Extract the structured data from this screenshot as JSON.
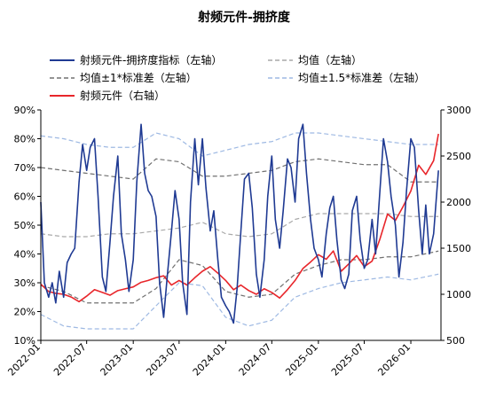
{
  "chart_data": {
    "type": "line",
    "title": "射频元件-拥挤度",
    "legend_placement": "top",
    "grid": false,
    "x_axis": {
      "type": "date",
      "range": [
        "2022-01-01",
        "2026-04-30"
      ],
      "tick_labels": [
        "2022-01",
        "2022-07",
        "2023-01",
        "2023-07",
        "2024-01",
        "2024-07",
        "2025-01",
        "2025-07",
        "2026-01"
      ]
    },
    "y_left": {
      "range": [
        10,
        90
      ],
      "unit": "%",
      "tick_labels": [
        "10%",
        "20%",
        "30%",
        "40%",
        "50%",
        "60%",
        "70%",
        "80%",
        "90%"
      ]
    },
    "y_right": {
      "range": [
        500,
        3000
      ],
      "tick_labels": [
        "500",
        "1000",
        "1500",
        "2000",
        "2500",
        "3000"
      ]
    },
    "series": [
      {
        "name": "射频元件-拥挤度指标（左轴）",
        "axis": "left",
        "color": "#1f3a93",
        "style": "solid",
        "points": [
          [
            "2022-01-01",
            58
          ],
          [
            "2022-01-15",
            30
          ],
          [
            "2022-02-01",
            25
          ],
          [
            "2022-02-15",
            30
          ],
          [
            "2022-03-01",
            23
          ],
          [
            "2022-03-15",
            34
          ],
          [
            "2022-04-01",
            25
          ],
          [
            "2022-04-15",
            37
          ],
          [
            "2022-05-01",
            40
          ],
          [
            "2022-05-15",
            42
          ],
          [
            "2022-06-01",
            65
          ],
          [
            "2022-06-15",
            78
          ],
          [
            "2022-07-01",
            69
          ],
          [
            "2022-07-15",
            77
          ],
          [
            "2022-08-01",
            80
          ],
          [
            "2022-08-15",
            60
          ],
          [
            "2022-09-01",
            32
          ],
          [
            "2022-09-15",
            27
          ],
          [
            "2022-10-01",
            44
          ],
          [
            "2022-10-15",
            60
          ],
          [
            "2022-11-01",
            74
          ],
          [
            "2022-11-15",
            47
          ],
          [
            "2022-12-01",
            38
          ],
          [
            "2022-12-15",
            27
          ],
          [
            "2023-01-01",
            38
          ],
          [
            "2023-01-15",
            65
          ],
          [
            "2023-02-01",
            85
          ],
          [
            "2023-02-15",
            68
          ],
          [
            "2023-03-01",
            62
          ],
          [
            "2023-03-15",
            60
          ],
          [
            "2023-04-01",
            53
          ],
          [
            "2023-04-15",
            30
          ],
          [
            "2023-05-01",
            18
          ],
          [
            "2023-05-15",
            32
          ],
          [
            "2023-06-01",
            48
          ],
          [
            "2023-06-15",
            62
          ],
          [
            "2023-07-01",
            52
          ],
          [
            "2023-07-15",
            30
          ],
          [
            "2023-08-01",
            19
          ],
          [
            "2023-08-15",
            58
          ],
          [
            "2023-09-01",
            80
          ],
          [
            "2023-09-15",
            64
          ],
          [
            "2023-10-01",
            80
          ],
          [
            "2023-10-15",
            63
          ],
          [
            "2023-11-01",
            48
          ],
          [
            "2023-11-15",
            55
          ],
          [
            "2023-12-01",
            38
          ],
          [
            "2023-12-15",
            25
          ],
          [
            "2024-01-01",
            22
          ],
          [
            "2024-01-15",
            20
          ],
          [
            "2024-02-01",
            16
          ],
          [
            "2024-02-15",
            28
          ],
          [
            "2024-03-01",
            48
          ],
          [
            "2024-03-15",
            66
          ],
          [
            "2024-04-01",
            68
          ],
          [
            "2024-04-15",
            56
          ],
          [
            "2024-05-01",
            33
          ],
          [
            "2024-05-15",
            25
          ],
          [
            "2024-06-01",
            38
          ],
          [
            "2024-06-15",
            60
          ],
          [
            "2024-07-01",
            74
          ],
          [
            "2024-07-15",
            52
          ],
          [
            "2024-08-01",
            42
          ],
          [
            "2024-08-15",
            55
          ],
          [
            "2024-09-01",
            73
          ],
          [
            "2024-09-15",
            70
          ],
          [
            "2024-10-01",
            58
          ],
          [
            "2024-10-15",
            80
          ],
          [
            "2024-11-01",
            85
          ],
          [
            "2024-11-15",
            68
          ],
          [
            "2024-12-01",
            52
          ],
          [
            "2024-12-15",
            42
          ],
          [
            "2025-01-01",
            38
          ],
          [
            "2025-01-15",
            32
          ],
          [
            "2025-02-01",
            47
          ],
          [
            "2025-02-15",
            56
          ],
          [
            "2025-03-01",
            60
          ],
          [
            "2025-03-15",
            45
          ],
          [
            "2025-04-01",
            31
          ],
          [
            "2025-04-15",
            28
          ],
          [
            "2025-05-01",
            33
          ],
          [
            "2025-05-15",
            55
          ],
          [
            "2025-06-01",
            60
          ],
          [
            "2025-06-15",
            45
          ],
          [
            "2025-07-01",
            35
          ],
          [
            "2025-07-15",
            38
          ],
          [
            "2025-08-01",
            52
          ],
          [
            "2025-08-15",
            40
          ],
          [
            "2025-09-01",
            62
          ],
          [
            "2025-09-15",
            80
          ],
          [
            "2025-10-01",
            72
          ],
          [
            "2025-10-15",
            60
          ],
          [
            "2025-11-01",
            50
          ],
          [
            "2025-11-15",
            32
          ],
          [
            "2025-12-01",
            44
          ],
          [
            "2025-12-15",
            62
          ],
          [
            "2026-01-01",
            80
          ],
          [
            "2026-01-15",
            77
          ],
          [
            "2026-02-01",
            55
          ],
          [
            "2026-02-15",
            40
          ],
          [
            "2026-03-01",
            57
          ],
          [
            "2026-03-15",
            40
          ],
          [
            "2026-04-01",
            47
          ],
          [
            "2026-04-20",
            69
          ]
        ]
      },
      {
        "name": "均值（左轴）",
        "axis": "left",
        "color": "#a9a9a9",
        "style": "dashed",
        "points": [
          [
            "2022-01-01",
            47
          ],
          [
            "2022-04-01",
            46
          ],
          [
            "2022-07-01",
            46
          ],
          [
            "2022-10-01",
            47
          ],
          [
            "2023-01-01",
            47
          ],
          [
            "2023-04-01",
            48
          ],
          [
            "2023-07-01",
            49
          ],
          [
            "2023-10-01",
            51
          ],
          [
            "2024-01-01",
            47
          ],
          [
            "2024-04-01",
            46
          ],
          [
            "2024-07-01",
            47
          ],
          [
            "2024-10-01",
            52
          ],
          [
            "2025-01-01",
            54
          ],
          [
            "2025-04-01",
            54
          ],
          [
            "2025-07-01",
            54
          ],
          [
            "2025-10-01",
            54
          ],
          [
            "2026-01-01",
            53
          ],
          [
            "2026-04-20",
            53
          ]
        ]
      },
      {
        "name": "均值±1*标准差（左轴）",
        "axis": "left",
        "color": "#707070",
        "style": "dashed",
        "upper_points": [
          [
            "2022-01-01",
            70
          ],
          [
            "2022-04-01",
            69
          ],
          [
            "2022-07-01",
            68
          ],
          [
            "2022-10-01",
            67
          ],
          [
            "2023-01-01",
            66
          ],
          [
            "2023-04-01",
            73
          ],
          [
            "2023-07-01",
            72
          ],
          [
            "2023-10-01",
            67
          ],
          [
            "2024-01-01",
            67
          ],
          [
            "2024-04-01",
            68
          ],
          [
            "2024-07-01",
            69
          ],
          [
            "2024-10-01",
            72
          ],
          [
            "2025-01-01",
            73
          ],
          [
            "2025-04-01",
            72
          ],
          [
            "2025-07-01",
            71
          ],
          [
            "2025-10-01",
            71
          ],
          [
            "2026-01-01",
            65
          ],
          [
            "2026-04-20",
            65
          ]
        ],
        "lower_points": [
          [
            "2022-01-01",
            29
          ],
          [
            "2022-04-01",
            27
          ],
          [
            "2022-07-01",
            23
          ],
          [
            "2022-10-01",
            23
          ],
          [
            "2023-01-01",
            23
          ],
          [
            "2023-04-01",
            28
          ],
          [
            "2023-07-01",
            38
          ],
          [
            "2023-10-01",
            36
          ],
          [
            "2024-01-01",
            27
          ],
          [
            "2024-04-01",
            25
          ],
          [
            "2024-07-01",
            26
          ],
          [
            "2024-10-01",
            33
          ],
          [
            "2025-01-01",
            36
          ],
          [
            "2025-04-01",
            38
          ],
          [
            "2025-07-01",
            38
          ],
          [
            "2025-10-01",
            39
          ],
          [
            "2026-01-01",
            39
          ],
          [
            "2026-04-20",
            41
          ]
        ]
      },
      {
        "name": "均值±1.5*标准差（左轴）",
        "axis": "left",
        "color": "#9eb9e3",
        "style": "dashed",
        "upper_points": [
          [
            "2022-01-01",
            81
          ],
          [
            "2022-04-01",
            80
          ],
          [
            "2022-07-01",
            78
          ],
          [
            "2022-10-01",
            77
          ],
          [
            "2023-01-01",
            77
          ],
          [
            "2023-04-01",
            82
          ],
          [
            "2023-07-01",
            80
          ],
          [
            "2023-10-01",
            74
          ],
          [
            "2024-01-01",
            76
          ],
          [
            "2024-04-01",
            78
          ],
          [
            "2024-07-01",
            79
          ],
          [
            "2024-10-01",
            82
          ],
          [
            "2025-01-01",
            82
          ],
          [
            "2025-04-01",
            81
          ],
          [
            "2025-07-01",
            80
          ],
          [
            "2025-10-01",
            79
          ],
          [
            "2026-01-01",
            78
          ],
          [
            "2026-04-20",
            78
          ]
        ],
        "lower_points": [
          [
            "2022-01-01",
            19
          ],
          [
            "2022-04-01",
            15
          ],
          [
            "2022-07-01",
            14
          ],
          [
            "2022-10-01",
            14
          ],
          [
            "2023-01-01",
            14
          ],
          [
            "2023-04-01",
            22
          ],
          [
            "2023-07-01",
            30
          ],
          [
            "2023-10-01",
            29
          ],
          [
            "2024-01-01",
            18
          ],
          [
            "2024-04-01",
            15
          ],
          [
            "2024-07-01",
            17
          ],
          [
            "2024-10-01",
            25
          ],
          [
            "2025-01-01",
            28
          ],
          [
            "2025-04-01",
            30
          ],
          [
            "2025-07-01",
            31
          ],
          [
            "2025-10-01",
            32
          ],
          [
            "2026-01-01",
            31
          ],
          [
            "2026-04-20",
            33
          ]
        ]
      },
      {
        "name": "射频元件（右轴）",
        "axis": "right",
        "color": "#e8262b",
        "style": "solid",
        "points": [
          [
            "2022-01-01",
            1110
          ],
          [
            "2022-02-01",
            1030
          ],
          [
            "2022-03-01",
            1010
          ],
          [
            "2022-04-01",
            1000
          ],
          [
            "2022-05-01",
            970
          ],
          [
            "2022-06-01",
            920
          ],
          [
            "2022-07-01",
            980
          ],
          [
            "2022-08-01",
            1050
          ],
          [
            "2022-09-01",
            1020
          ],
          [
            "2022-10-01",
            990
          ],
          [
            "2022-11-01",
            1040
          ],
          [
            "2022-12-01",
            1060
          ],
          [
            "2023-01-01",
            1080
          ],
          [
            "2023-02-01",
            1130
          ],
          [
            "2023-03-01",
            1150
          ],
          [
            "2023-04-01",
            1180
          ],
          [
            "2023-05-01",
            1200
          ],
          [
            "2023-06-01",
            1100
          ],
          [
            "2023-07-01",
            1150
          ],
          [
            "2023-08-01",
            1100
          ],
          [
            "2023-09-01",
            1180
          ],
          [
            "2023-10-01",
            1250
          ],
          [
            "2023-11-01",
            1300
          ],
          [
            "2023-12-01",
            1230
          ],
          [
            "2024-01-01",
            1150
          ],
          [
            "2024-02-01",
            1050
          ],
          [
            "2024-03-01",
            1100
          ],
          [
            "2024-04-01",
            1040
          ],
          [
            "2024-05-01",
            1000
          ],
          [
            "2024-06-01",
            1060
          ],
          [
            "2024-07-01",
            1020
          ],
          [
            "2024-08-01",
            960
          ],
          [
            "2024-09-01",
            1050
          ],
          [
            "2024-10-01",
            1150
          ],
          [
            "2024-11-01",
            1280
          ],
          [
            "2024-12-01",
            1350
          ],
          [
            "2025-01-01",
            1430
          ],
          [
            "2025-02-01",
            1380
          ],
          [
            "2025-03-01",
            1470
          ],
          [
            "2025-04-01",
            1250
          ],
          [
            "2025-05-01",
            1330
          ],
          [
            "2025-06-01",
            1420
          ],
          [
            "2025-07-01",
            1300
          ],
          [
            "2025-08-01",
            1360
          ],
          [
            "2025-09-01",
            1600
          ],
          [
            "2025-10-01",
            1870
          ],
          [
            "2025-11-01",
            1800
          ],
          [
            "2025-12-01",
            1950
          ],
          [
            "2026-01-01",
            2120
          ],
          [
            "2026-02-01",
            2400
          ],
          [
            "2026-03-01",
            2300
          ],
          [
            "2026-04-01",
            2450
          ],
          [
            "2026-04-20",
            2740
          ]
        ]
      }
    ]
  }
}
